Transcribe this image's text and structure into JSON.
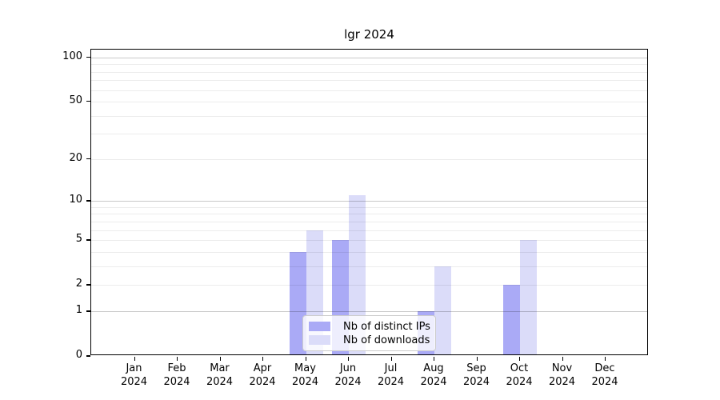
{
  "title": "lgr 2024",
  "legend": {
    "items": [
      {
        "label": "Nb of distinct IPs",
        "color": "#aaaaf6"
      },
      {
        "label": "Nb of downloads",
        "color": "#dbdcf9"
      }
    ]
  },
  "chart_data": {
    "type": "bar",
    "title": "lgr 2024",
    "categories": [
      "Jan",
      "Feb",
      "Mar",
      "Apr",
      "May",
      "Jun",
      "Jul",
      "Aug",
      "Sep",
      "Oct",
      "Nov",
      "Dec"
    ],
    "year_label": "2024",
    "series": [
      {
        "name": "Nb of distinct IPs",
        "color": "#aaaaf6",
        "values": [
          0,
          0,
          0,
          0,
          4,
          5,
          0,
          1,
          0,
          2,
          0,
          0
        ]
      },
      {
        "name": "Nb of downloads",
        "color": "#dbdcf9",
        "values": [
          0,
          0,
          0,
          0,
          6,
          11,
          0,
          3,
          0,
          5,
          0,
          0
        ]
      }
    ],
    "xlabel": "",
    "ylabel": "",
    "yscale": "log1p",
    "ylim": [
      0,
      113
    ],
    "yticks_labeled": [
      100,
      50,
      20,
      10,
      5,
      2,
      1,
      0
    ],
    "major_gridlines": [
      1,
      10,
      100
    ],
    "minor_gridlines": [
      2,
      3,
      4,
      5,
      6,
      7,
      8,
      9,
      20,
      30,
      40,
      50,
      60,
      70,
      80,
      90
    ],
    "grid": "on",
    "legend_position": "lower center",
    "background_color": "#ffffff",
    "axis_color": "#000000"
  }
}
